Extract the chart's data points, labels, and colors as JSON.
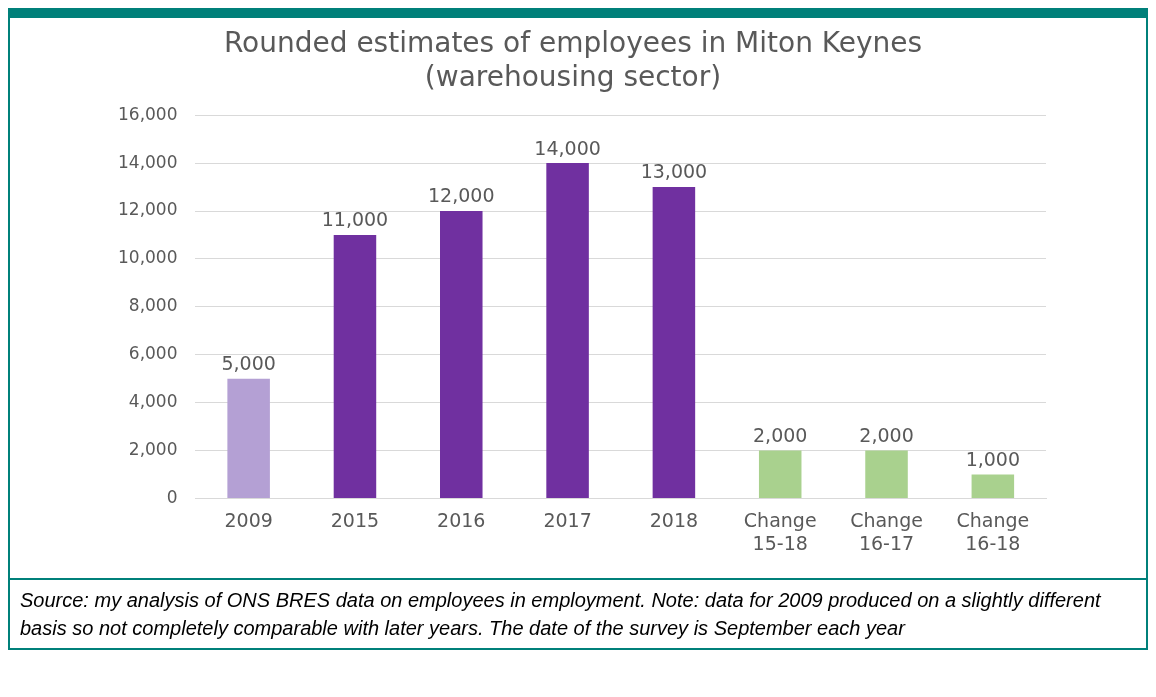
{
  "chart_data": {
    "type": "bar",
    "title": [
      "Rounded estimates of employees in Miton Keynes",
      "(warehousing sector)"
    ],
    "categories": [
      "2009",
      "2015",
      "2016",
      "2017",
      "2018",
      "Change 15-18",
      "Change 16-17",
      "Change 16-18"
    ],
    "values": [
      5000,
      11000,
      12000,
      14000,
      13000,
      2000,
      2000,
      1000
    ],
    "colors": [
      "#b4a0d4",
      "#7030a0",
      "#7030a0",
      "#7030a0",
      "#7030a0",
      "#a9d18e",
      "#a9d18e",
      "#a9d18e"
    ],
    "value_labels": [
      "5,000",
      "11,000",
      "12,000",
      "14,000",
      "13,000",
      "2,000",
      "2,000",
      "1,000"
    ],
    "ylim": [
      0,
      16000
    ],
    "yticks": [
      0,
      {
        "value": 2000,
        "label": "2,000"
      },
      {
        "value": 4000,
        "label": "4,000"
      },
      {
        "value": 6000,
        "label": "6,000"
      },
      {
        "value": 8000,
        "label": "8,000"
      },
      {
        "value": 10000,
        "label": "10,000"
      },
      {
        "value": 12000,
        "label": "12,000"
      },
      {
        "value": 14000,
        "label": "14,000"
      },
      {
        "value": 16000,
        "label": "16,000"
      }
    ],
    "grid": "y",
    "legend": false,
    "annotations": [
      "Source: my analysis of ONS BRES data on employees in employment. Note: data for 2009 produced on a slightly different basis so not completely comparable with later years. The date of the survey is September each year"
    ]
  }
}
